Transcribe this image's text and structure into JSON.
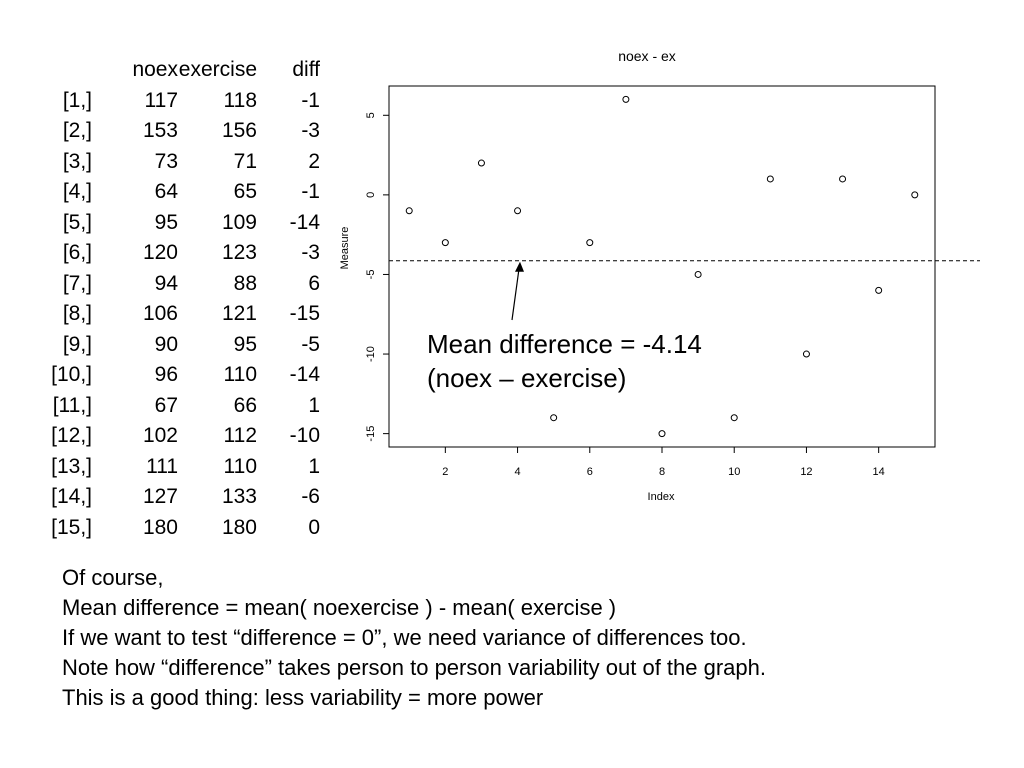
{
  "table": {
    "headers": [
      "noex",
      "exercise",
      "diff"
    ],
    "rows": [
      {
        "idx": "[1,]",
        "noex": "117",
        "exercise": "118",
        "diff": "-1"
      },
      {
        "idx": "[2,]",
        "noex": "153",
        "exercise": "156",
        "diff": "-3"
      },
      {
        "idx": "[3,]",
        "noex": "73",
        "exercise": "71",
        "diff": "2"
      },
      {
        "idx": "[4,]",
        "noex": "64",
        "exercise": "65",
        "diff": "-1"
      },
      {
        "idx": "[5,]",
        "noex": "95",
        "exercise": "109",
        "diff": "-14"
      },
      {
        "idx": "[6,]",
        "noex": "120",
        "exercise": "123",
        "diff": "-3"
      },
      {
        "idx": "[7,]",
        "noex": "94",
        "exercise": "88",
        "diff": "6"
      },
      {
        "idx": "[8,]",
        "noex": "106",
        "exercise": "121",
        "diff": "-15"
      },
      {
        "idx": "[9,]",
        "noex": "90",
        "exercise": "95",
        "diff": "-5"
      },
      {
        "idx": "[10,]",
        "noex": "96",
        "exercise": "110",
        "diff": "-14"
      },
      {
        "idx": "[11,]",
        "noex": "67",
        "exercise": "66",
        "diff": "1"
      },
      {
        "idx": "[12,]",
        "noex": "102",
        "exercise": "112",
        "diff": "-10"
      },
      {
        "idx": "[13,]",
        "noex": "111",
        "exercise": "110",
        "diff": "1"
      },
      {
        "idx": "[14,]",
        "noex": "127",
        "exercise": "133",
        "diff": "-6"
      },
      {
        "idx": "[15,]",
        "noex": "180",
        "exercise": "180",
        "diff": "0"
      }
    ]
  },
  "chart_data": {
    "type": "scatter",
    "title": "noex - ex",
    "xlabel": "Index",
    "ylabel": "Measure",
    "x": [
      1,
      2,
      3,
      4,
      5,
      6,
      7,
      8,
      9,
      10,
      11,
      12,
      13,
      14,
      15
    ],
    "y": [
      -1,
      -3,
      2,
      -1,
      -14,
      -3,
      6,
      -15,
      -5,
      -14,
      1,
      -10,
      1,
      -6,
      0
    ],
    "xlim": [
      0.44,
      15.56
    ],
    "ylim": [
      -15.84,
      6.84
    ],
    "xticks": [
      2,
      4,
      6,
      8,
      10,
      12,
      14
    ],
    "yticks": [
      -15,
      -10,
      -5,
      0,
      5
    ],
    "mean_line": -4.14,
    "annotation": [
      "Mean difference = -4.14",
      "(noex – exercise)"
    ],
    "marker": "open-circle",
    "grid": false
  },
  "notes": [
    "Of course,",
    "Mean difference = mean( noexercise ) - mean( exercise )",
    "If we want to test “difference = 0”, we need variance of differences too.",
    "Note how “difference” takes person to person variability out of the graph.",
    "This is a good thing: less variability = more power"
  ]
}
